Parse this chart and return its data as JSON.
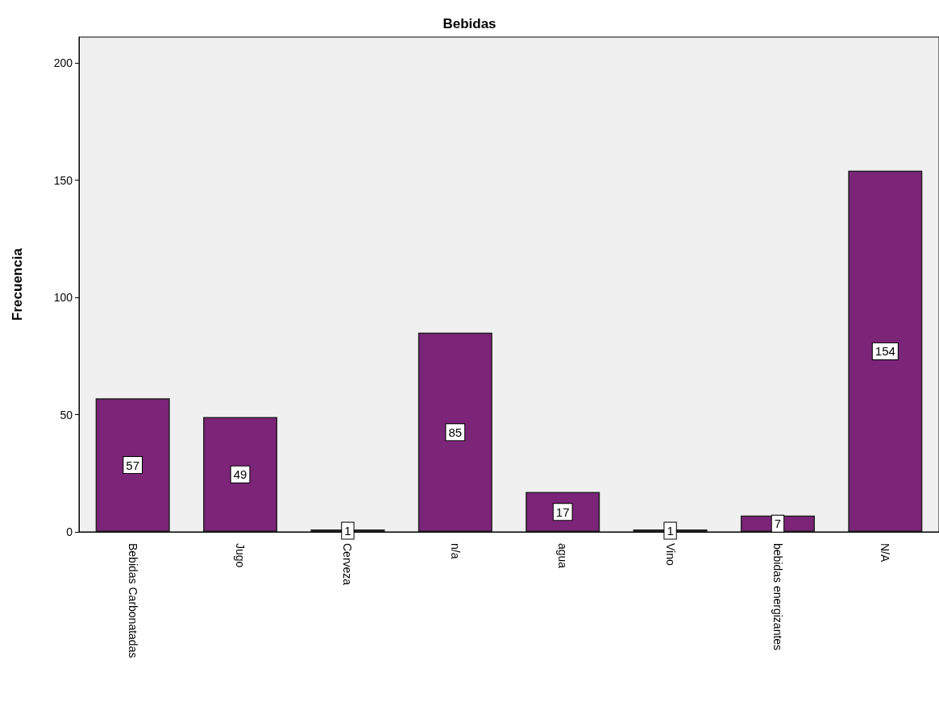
{
  "chart_data": {
    "type": "bar",
    "title": "Bebidas",
    "ylabel": "Frecuencia",
    "categories": [
      "Bebidas Carbonatadas",
      "Jugo",
      "Cerveza",
      "n/a",
      "agua",
      "Vino",
      "bebidas energizantes",
      "N/A"
    ],
    "values": [
      57,
      49,
      1,
      85,
      17,
      1,
      7,
      154
    ],
    "color": "#7b2478",
    "ylim": [
      0,
      211
    ],
    "yticks": [
      0,
      50,
      100,
      150,
      200
    ],
    "grid": false,
    "data_labels": true
  }
}
